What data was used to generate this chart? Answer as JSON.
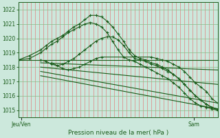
{
  "title": "Pression niveau de la mer( hPa )",
  "xlabel_left": "Jeu/Ven",
  "xlabel_right": "Sam",
  "ylim": [
    1014.5,
    1022.5
  ],
  "yticks": [
    1015,
    1016,
    1017,
    1018,
    1019,
    1020,
    1021,
    1022
  ],
  "bg_color": "#cce8dc",
  "line_color": "#1a5c1a",
  "grid_color_v": "#e08080",
  "grid_color_h": "#88bb88",
  "n_vgrid": 48,
  "lines": [
    {
      "x": [
        0,
        2,
        4,
        5,
        6,
        7,
        8,
        9,
        10,
        11,
        12,
        13,
        14,
        15,
        16,
        17,
        18,
        19,
        20,
        21,
        22,
        23,
        24,
        25,
        26,
        27,
        28,
        29,
        30,
        31,
        32,
        33,
        34,
        35,
        36
      ],
      "y": [
        1018.5,
        1018.8,
        1019.2,
        1019.5,
        1019.8,
        1020.0,
        1020.2,
        1020.5,
        1020.8,
        1021.0,
        1021.3,
        1021.6,
        1021.6,
        1021.5,
        1021.2,
        1020.8,
        1020.3,
        1019.8,
        1019.2,
        1018.8,
        1018.6,
        1018.5,
        1018.3,
        1018.2,
        1018.0,
        1017.8,
        1017.5,
        1017.2,
        1016.8,
        1016.4,
        1016.0,
        1015.7,
        1015.4,
        1015.2,
        1015.1
      ],
      "markers": true
    },
    {
      "x": [
        0,
        2,
        4,
        5,
        6,
        7,
        8,
        9,
        10,
        11,
        12,
        13,
        14,
        15,
        16,
        17,
        18,
        19,
        20,
        21,
        22,
        23,
        24,
        25,
        26,
        27,
        28,
        29,
        30,
        31,
        32,
        33,
        34,
        35,
        36
      ],
      "y": [
        1018.5,
        1018.6,
        1019.0,
        1019.3,
        1019.6,
        1019.8,
        1020.1,
        1020.4,
        1020.6,
        1020.8,
        1021.0,
        1021.1,
        1021.0,
        1020.8,
        1020.4,
        1019.8,
        1019.2,
        1018.7,
        1018.5,
        1018.4,
        1018.2,
        1018.0,
        1017.8,
        1017.6,
        1017.4,
        1017.2,
        1016.9,
        1016.6,
        1016.2,
        1015.8,
        1015.5,
        1015.3,
        1015.2,
        1015.1,
        1015.0
      ],
      "markers": true
    },
    {
      "x": [
        4,
        5,
        6,
        7,
        8,
        9,
        10,
        11,
        12,
        13,
        14,
        15,
        16,
        17,
        18,
        19,
        20,
        21,
        22,
        23,
        24,
        25,
        26,
        27,
        28,
        29,
        30,
        31,
        32,
        33,
        34,
        35,
        36
      ],
      "y": [
        1018.5,
        1018.4,
        1018.2,
        1018.1,
        1018.2,
        1018.4,
        1018.6,
        1018.9,
        1019.2,
        1019.5,
        1019.8,
        1020.0,
        1020.1,
        1020.1,
        1019.9,
        1019.5,
        1019.0,
        1018.6,
        1018.5,
        1018.4,
        1018.2,
        1018.1,
        1017.9,
        1017.7,
        1017.5,
        1017.2,
        1016.8,
        1016.4,
        1016.0,
        1015.7,
        1015.4,
        1015.2,
        1015.0
      ],
      "markers": true
    },
    {
      "x": [
        0,
        36
      ],
      "y": [
        1018.5,
        1018.5
      ],
      "markers": false
    },
    {
      "x": [
        4,
        36
      ],
      "y": [
        1018.3,
        1017.8
      ],
      "markers": false
    },
    {
      "x": [
        4,
        36
      ],
      "y": [
        1018.0,
        1016.8
      ],
      "markers": false
    },
    {
      "x": [
        4,
        36
      ],
      "y": [
        1017.7,
        1015.5
      ],
      "markers": false
    },
    {
      "x": [
        4,
        36
      ],
      "y": [
        1017.4,
        1015.1
      ],
      "markers": false
    },
    {
      "x": [
        6,
        8,
        9,
        10,
        11,
        12,
        13,
        14,
        15,
        24,
        25,
        26,
        27,
        28,
        29,
        30,
        31,
        32,
        33,
        34,
        35,
        36
      ],
      "y": [
        1018.3,
        1017.9,
        1017.8,
        1017.9,
        1018.0,
        1018.2,
        1018.4,
        1018.6,
        1018.7,
        1018.7,
        1018.6,
        1018.5,
        1018.4,
        1018.2,
        1018.0,
        1017.7,
        1017.3,
        1016.9,
        1016.6,
        1016.3,
        1015.8,
        1015.5
      ],
      "markers": true
    }
  ]
}
